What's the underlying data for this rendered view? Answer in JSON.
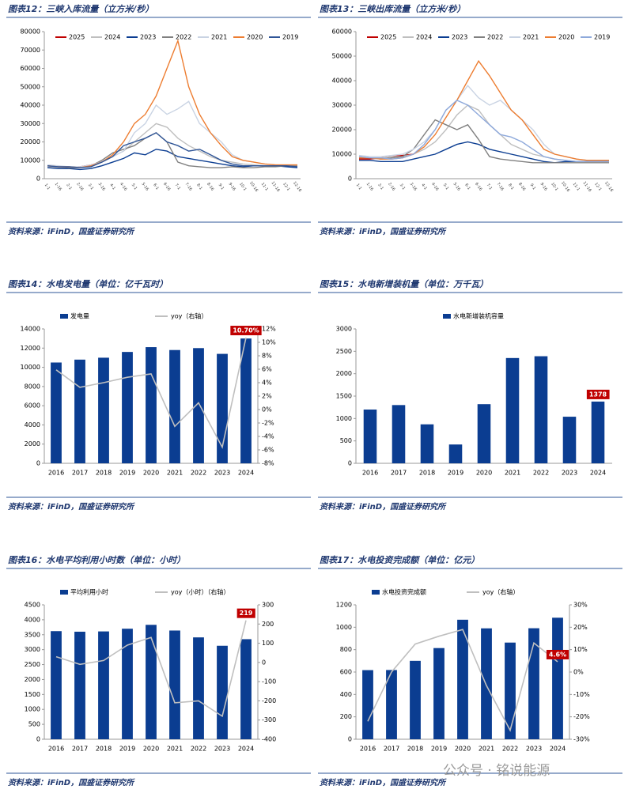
{
  "chart_data": [
    {
      "type": "line",
      "title": "图表12：三峡入库流量（立方米/秒）",
      "source": "资料来源：iFinD，国盛证券研究所",
      "categories": [
        "1-1",
        "1-16",
        "2-1",
        "2-16",
        "3-1",
        "3-16",
        "4-1",
        "4-16",
        "5-1",
        "5-16",
        "6-1",
        "6-16",
        "7-1",
        "7-16",
        "8-1",
        "8-16",
        "9-1",
        "9-16",
        "10-1",
        "10-16",
        "11-1",
        "11-16",
        "12-1",
        "12-16"
      ],
      "ylim": [
        0,
        80000
      ],
      "yticks": [
        0,
        10000,
        20000,
        30000,
        40000,
        50000,
        60000,
        70000,
        80000
      ],
      "series": [
        {
          "name": "2025",
          "color": "#c00000",
          "values": [
            7000,
            6500,
            6000,
            6500,
            7500,
            9000,
            null,
            null,
            null,
            null,
            null,
            null,
            null,
            null,
            null,
            null,
            null,
            null,
            null,
            null,
            null,
            null,
            null,
            null
          ]
        },
        {
          "name": "2024",
          "color": "#bfbfbf",
          "values": [
            6500,
            6000,
            5800,
            6000,
            7000,
            9000,
            12000,
            15000,
            20000,
            25000,
            30000,
            28000,
            22000,
            18000,
            15000,
            12000,
            10000,
            9000,
            8000,
            7500,
            7000,
            7000,
            7000,
            7000
          ]
        },
        {
          "name": "2023",
          "color": "#0b3d91",
          "values": [
            6000,
            5500,
            5500,
            5000,
            5500,
            7000,
            9000,
            11000,
            14000,
            13000,
            16000,
            15000,
            12000,
            11000,
            10000,
            9000,
            8000,
            7000,
            6500,
            7000,
            7000,
            7000,
            6500,
            6000
          ]
        },
        {
          "name": "2022",
          "color": "#808080",
          "values": [
            7000,
            6500,
            6000,
            6000,
            7000,
            10000,
            14000,
            16000,
            18000,
            22000,
            25000,
            20000,
            9000,
            7000,
            6500,
            6000,
            6000,
            6500,
            6000,
            6000,
            6500,
            6500,
            7000,
            7000
          ]
        },
        {
          "name": "2021",
          "color": "#c9d3e3",
          "values": [
            7500,
            7000,
            6500,
            6500,
            7500,
            9000,
            12000,
            15000,
            25000,
            30000,
            40000,
            35000,
            38000,
            42000,
            30000,
            25000,
            20000,
            13000,
            10000,
            9000,
            8000,
            7500,
            7500,
            7500
          ]
        },
        {
          "name": "2020",
          "color": "#ed7d31",
          "values": [
            7000,
            6500,
            6500,
            6000,
            7000,
            9000,
            13000,
            20000,
            30000,
            35000,
            45000,
            60000,
            75000,
            50000,
            35000,
            25000,
            18000,
            12000,
            10000,
            9000,
            8000,
            7500,
            7500,
            7500
          ]
        },
        {
          "name": "2019",
          "color": "#2f5597",
          "values": [
            7000,
            6500,
            6500,
            6000,
            6500,
            9000,
            12000,
            18000,
            20000,
            22000,
            25000,
            20000,
            18000,
            15000,
            16000,
            13000,
            10000,
            8000,
            7000,
            7000,
            7000,
            7000,
            7000,
            6500
          ]
        }
      ]
    },
    {
      "type": "line",
      "title": "图表13：三峡出库流量（立方米/秒）",
      "source": "资料来源：iFinD，国盛证券研究所",
      "categories": [
        "1-1",
        "1-16",
        "2-1",
        "2-16",
        "3-1",
        "3-16",
        "4-1",
        "4-16",
        "5-1",
        "5-16",
        "6-1",
        "6-16",
        "7-1",
        "7-16",
        "8-1",
        "8-16",
        "9-1",
        "9-16",
        "10-1",
        "10-16",
        "11-1",
        "11-16",
        "12-1",
        "12-16"
      ],
      "ylim": [
        0,
        60000
      ],
      "yticks": [
        0,
        10000,
        20000,
        30000,
        40000,
        50000,
        60000
      ],
      "series": [
        {
          "name": "2025",
          "color": "#c00000",
          "values": [
            8000,
            8000,
            8500,
            9000,
            9500,
            10000,
            null,
            null,
            null,
            null,
            null,
            null,
            null,
            null,
            null,
            null,
            null,
            null,
            null,
            null,
            null,
            null,
            null,
            null
          ]
        },
        {
          "name": "2024",
          "color": "#bfbfbf",
          "values": [
            9000,
            8500,
            8500,
            9000,
            9000,
            10000,
            12000,
            15000,
            20000,
            26000,
            30000,
            28000,
            22000,
            18000,
            14000,
            12000,
            10000,
            9000,
            8000,
            7500,
            7000,
            7000,
            7000,
            7000
          ]
        },
        {
          "name": "2023",
          "color": "#0b3d91",
          "values": [
            7500,
            7500,
            7000,
            7000,
            7000,
            8000,
            9000,
            10000,
            12000,
            14000,
            15000,
            14000,
            12000,
            11000,
            10000,
            9000,
            8000,
            7000,
            6500,
            7000,
            7000,
            7000,
            7000,
            7000
          ]
        },
        {
          "name": "2022",
          "color": "#808080",
          "values": [
            8500,
            8500,
            8000,
            8500,
            9000,
            12000,
            18000,
            24000,
            22000,
            20000,
            22000,
            16000,
            9000,
            8000,
            7500,
            7000,
            6500,
            6500,
            6500,
            6500,
            6500,
            6500,
            6500,
            6500
          ]
        },
        {
          "name": "2021",
          "color": "#c9d3e3",
          "values": [
            9500,
            9000,
            9000,
            9500,
            10000,
            12000,
            15000,
            20000,
            28000,
            32000,
            38000,
            33000,
            30000,
            32000,
            28000,
            24000,
            20000,
            14000,
            10000,
            9000,
            8000,
            7500,
            7500,
            7500
          ]
        },
        {
          "name": "2020",
          "color": "#ed7d31",
          "values": [
            8500,
            8500,
            8000,
            8000,
            8500,
            10000,
            13000,
            18000,
            25000,
            32000,
            40000,
            48000,
            42000,
            35000,
            28000,
            24000,
            18000,
            12000,
            10000,
            9000,
            8000,
            7500,
            7500,
            7500
          ]
        },
        {
          "name": "2019",
          "color": "#8ea9db",
          "values": [
            9000,
            8500,
            8500,
            8000,
            8500,
            10000,
            14000,
            20000,
            28000,
            32000,
            30000,
            26000,
            22000,
            18000,
            17000,
            15000,
            12000,
            9000,
            8000,
            7500,
            7000,
            7000,
            7000,
            7000
          ]
        }
      ]
    },
    {
      "type": "combo",
      "title": "图表14：水电发电量（单位：亿千瓦时）",
      "source": "资料来源：iFinD，国盛证券研究所",
      "categories": [
        "2016",
        "2017",
        "2018",
        "2019",
        "2020",
        "2021",
        "2022",
        "2023",
        "2024"
      ],
      "ylim": [
        0,
        14000
      ],
      "yticks": [
        0,
        2000,
        4000,
        6000,
        8000,
        10000,
        12000,
        14000
      ],
      "y2lim": [
        -8,
        12
      ],
      "y2ticks": [
        {
          "value": -8,
          "label": "-8%"
        },
        {
          "value": -6,
          "label": "-6%"
        },
        {
          "value": -4,
          "label": "-4%"
        },
        {
          "value": -2,
          "label": "-2%"
        },
        {
          "value": 0,
          "label": "0%"
        },
        {
          "value": 2,
          "label": "2%"
        },
        {
          "value": 4,
          "label": "4%"
        },
        {
          "value": 6,
          "label": "6%"
        },
        {
          "value": 8,
          "label": "8%"
        },
        {
          "value": 10,
          "label": "10%"
        },
        {
          "value": 12,
          "label": "12%"
        }
      ],
      "series": [
        {
          "name": "发电量",
          "color": "#0b3d91",
          "values": [
            10500,
            10800,
            11000,
            11600,
            12100,
            11800,
            12000,
            11400,
            13000
          ]
        },
        {
          "name": "yoy（右轴）",
          "color": "#bfbfbf",
          "axis": "y2",
          "values": [
            5.9,
            3.3,
            4.0,
            4.8,
            5.3,
            -2.5,
            1.0,
            -5.6,
            10.7
          ],
          "value_labels": [
            null,
            null,
            null,
            null,
            null,
            null,
            null,
            null,
            "10.70%"
          ]
        }
      ]
    },
    {
      "type": "bar",
      "title": "图表15：水电新增装机量（单位：万千瓦）",
      "source": "资料来源：iFinD，国盛证券研究所",
      "categories": [
        "2016",
        "2017",
        "2018",
        "2019",
        "2020",
        "2021",
        "2022",
        "2023",
        "2024"
      ],
      "ylim": [
        0,
        3000
      ],
      "yticks": [
        0,
        500,
        1000,
        1500,
        2000,
        2500,
        3000
      ],
      "series": [
        {
          "name": "水电新增装机容量",
          "color": "#0b3d91",
          "values": [
            1200,
            1300,
            870,
            420,
            1320,
            2350,
            2390,
            1040,
            1378
          ],
          "value_labels": [
            null,
            null,
            null,
            null,
            null,
            null,
            null,
            null,
            "1378"
          ]
        }
      ]
    },
    {
      "type": "combo",
      "title": "图表16：水电平均利用小时数（单位：小时）",
      "source": "资料来源：iFinD，国盛证券研究所",
      "categories": [
        "2016",
        "2017",
        "2018",
        "2019",
        "2020",
        "2021",
        "2022",
        "2023",
        "2024"
      ],
      "ylim": [
        0,
        4500
      ],
      "yticks": [
        0,
        500,
        1000,
        1500,
        2000,
        2500,
        3000,
        3500,
        4000,
        4500
      ],
      "y2lim": [
        -400,
        300
      ],
      "y2ticks": [
        -400,
        -300,
        -200,
        -100,
        0,
        100,
        200,
        300
      ],
      "series": [
        {
          "name": "平均利用小时",
          "color": "#0b3d91",
          "values": [
            3620,
            3600,
            3610,
            3700,
            3830,
            3640,
            3410,
            3130,
            3350
          ]
        },
        {
          "name": "yoy（小时）（右轴）",
          "color": "#bfbfbf",
          "axis": "y2",
          "values": [
            30,
            -10,
            10,
            90,
            130,
            -210,
            -200,
            -280,
            219
          ],
          "value_labels": [
            null,
            null,
            null,
            null,
            null,
            null,
            null,
            null,
            "219"
          ]
        }
      ]
    },
    {
      "type": "combo",
      "title": "图表17：水电投资完成额（单位：亿元）",
      "source": "资料来源：iFinD，国盛证券研究所",
      "categories": [
        "2016",
        "2017",
        "2018",
        "2019",
        "2020",
        "2021",
        "2022",
        "2023",
        "2024"
      ],
      "ylim": [
        0,
        1200
      ],
      "yticks": [
        0,
        200,
        400,
        600,
        800,
        1000,
        1200
      ],
      "y2lim": [
        -30,
        30
      ],
      "y2ticks": [
        {
          "value": -30,
          "label": "-30%"
        },
        {
          "value": -20,
          "label": "-20%"
        },
        {
          "value": -10,
          "label": "-10%"
        },
        {
          "value": 0,
          "label": "0%"
        },
        {
          "value": 10,
          "label": "10%"
        },
        {
          "value": 20,
          "label": "20%"
        },
        {
          "value": 30,
          "label": "30%"
        }
      ],
      "series": [
        {
          "name": "水电投资完成额",
          "color": "#0b3d91",
          "values": [
            617,
            618,
            700,
            814,
            1067,
            990,
            863,
            991,
            1085
          ]
        },
        {
          "name": "yoy（右轴）",
          "color": "#bfbfbf",
          "axis": "y2",
          "values": [
            -22,
            0,
            12.5,
            16,
            19,
            -6,
            -26,
            13,
            4.6
          ],
          "value_labels": [
            null,
            null,
            null,
            null,
            null,
            null,
            null,
            null,
            "4.6%"
          ]
        }
      ]
    }
  ],
  "watermark": "公众号 · 铭说能源"
}
